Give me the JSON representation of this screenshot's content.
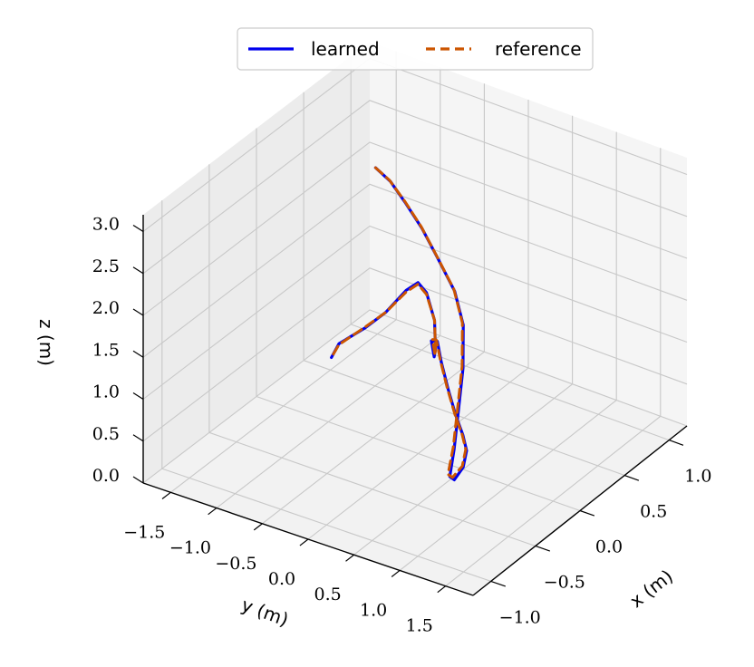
{
  "chart_data": {
    "type": "line3d",
    "title": "",
    "xlabel": "x (m)",
    "ylabel": "y (m)",
    "zlabel": "z (m)",
    "xlim": [
      -1.2,
      1.2
    ],
    "ylim": [
      -1.8,
      1.8
    ],
    "zlim": [
      0.0,
      3.2
    ],
    "x_ticks": [
      "−1.0",
      "−0.5",
      "0.0",
      "0.5",
      "1.0"
    ],
    "y_ticks": [
      "−1.5",
      "−1.0",
      "−0.5",
      "0.0",
      "0.5",
      "1.0",
      "1.5"
    ],
    "z_ticks": [
      "0.0",
      "0.5",
      "1.0",
      "1.5",
      "2.0",
      "2.5",
      "3.0"
    ],
    "grid": true,
    "legend": {
      "placement": "top-center",
      "columns": 2
    },
    "series": [
      {
        "name": "learned",
        "color": "#0000ee",
        "style": "solid",
        "x": [
          0.98,
          0.95,
          0.85,
          0.7,
          0.5,
          0.3,
          0.1,
          -0.2,
          -0.5,
          -0.8,
          -1.0,
          -0.95,
          -0.78,
          -0.58,
          -0.4,
          -0.2,
          0.05,
          0.3,
          0.5,
          0.58,
          0.62,
          0.72,
          0.93,
          1.1,
          1.15,
          1.1,
          0.9,
          0.7,
          0.42,
          0.32
        ],
        "y": [
          -1.5,
          -1.3,
          -1.02,
          -0.68,
          -0.3,
          0.1,
          0.4,
          0.7,
          0.95,
          1.2,
          1.35,
          1.35,
          1.28,
          1.12,
          0.9,
          0.62,
          0.28,
          -0.05,
          -0.3,
          -0.45,
          -0.46,
          -0.55,
          -0.78,
          -1.05,
          -1.2,
          -1.28,
          -1.3,
          -1.32,
          -1.32,
          -1.3
        ],
        "z": [
          2.0,
          1.94,
          1.87,
          1.83,
          1.8,
          1.72,
          1.6,
          1.45,
          1.3,
          1.18,
          1.08,
          1.0,
          0.98,
          0.95,
          0.9,
          0.86,
          0.84,
          0.82,
          0.8,
          0.68,
          0.45,
          0.42,
          0.5,
          0.58,
          0.6,
          0.52,
          0.42,
          0.4,
          0.45,
          0.38
        ]
      },
      {
        "name": "reference",
        "color": "#cc5500",
        "style": "dashed",
        "x": [
          0.98,
          0.95,
          0.85,
          0.7,
          0.5,
          0.3,
          0.1,
          -0.2,
          -0.5,
          -0.8,
          -1.0,
          -0.95,
          -0.78,
          -0.58,
          -0.4,
          -0.2,
          0.05,
          0.3,
          0.5,
          0.58,
          0.62,
          0.72,
          0.93,
          1.1,
          1.15,
          1.1,
          0.9,
          0.7,
          0.42,
          0.32
        ],
        "y": [
          -1.5,
          -1.31,
          -1.03,
          -0.69,
          -0.31,
          0.09,
          0.39,
          0.69,
          0.94,
          1.19,
          1.33,
          1.33,
          1.27,
          1.11,
          0.89,
          0.61,
          0.27,
          -0.06,
          -0.31,
          -0.44,
          -0.45,
          -0.55,
          -0.78,
          -1.05,
          -1.2,
          -1.28,
          -1.3,
          -1.32,
          -1.32,
          -1.3
        ],
        "z": [
          2.0,
          1.95,
          1.89,
          1.85,
          1.82,
          1.74,
          1.62,
          1.47,
          1.32,
          1.2,
          1.1,
          1.02,
          0.99,
          0.96,
          0.91,
          0.87,
          0.85,
          0.83,
          0.81,
          0.7,
          0.47,
          0.44,
          0.5,
          0.56,
          0.58,
          0.5,
          0.42,
          0.41,
          0.44,
          0.38
        ]
      }
    ]
  }
}
